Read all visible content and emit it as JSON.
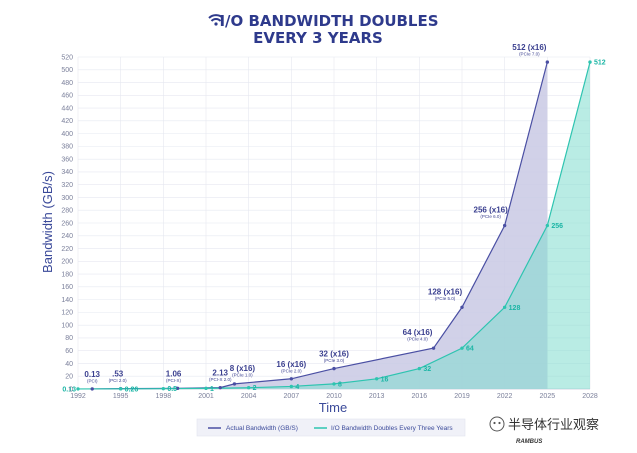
{
  "chart_data": {
    "type": "area",
    "title_line1": "I/O BANDWIDTH DOUBLES",
    "title_line2": "EVERY 3 YEARS",
    "xlabel": "Time",
    "ylabel": "Bandwidth (GB/s)",
    "ylim": [
      0,
      520
    ],
    "y_ticks": [
      0,
      20,
      40,
      60,
      80,
      100,
      120,
      140,
      160,
      180,
      200,
      220,
      240,
      260,
      280,
      300,
      320,
      340,
      360,
      380,
      400,
      420,
      440,
      460,
      480,
      500,
      520
    ],
    "xlim": [
      1992,
      2028
    ],
    "x_ticks": [
      1992,
      1995,
      1998,
      2001,
      2004,
      2007,
      2010,
      2013,
      2016,
      2019,
      2022,
      2025,
      2028
    ],
    "grid": true,
    "legend_position": "bottom-center",
    "series": [
      {
        "name": "Actual Bandwidth (GB/S)",
        "color": "#4a4fa3",
        "points": [
          {
            "x": 1993,
            "y": 0.13,
            "label": "0.13",
            "sublabel": "(PCI)"
          },
          {
            "x": 1995,
            "y": 0.53,
            "label": ".53",
            "sublabel": "(PCI 2.0)"
          },
          {
            "x": 1999,
            "y": 1.06,
            "label": "1.06",
            "sublabel": "(PCI-X)"
          },
          {
            "x": 2002,
            "y": 2.13,
            "label": "2.13",
            "sublabel": "(PCI-X 2.0)"
          },
          {
            "x": 2003,
            "y": 8,
            "label": "8 (x16)",
            "sublabel": "(PCIe 1.0)"
          },
          {
            "x": 2007,
            "y": 16,
            "label": "16 (x16)",
            "sublabel": "(PCIe 2.0)"
          },
          {
            "x": 2010,
            "y": 32,
            "label": "32 (x16)",
            "sublabel": "(PCIe 3.0)"
          },
          {
            "x": 2017,
            "y": 64,
            "label": "64 (x16)",
            "sublabel": "(PCIe 4.0)"
          },
          {
            "x": 2019,
            "y": 128,
            "label": "128 (x16)",
            "sublabel": "(PCIe 5.0)"
          },
          {
            "x": 2022,
            "y": 256,
            "label": "256 (x16)",
            "sublabel": "(PCIe 6.0)"
          },
          {
            "x": 2025,
            "y": 512,
            "label": "512 (x16)",
            "sublabel": "(PCIe 7.0)"
          }
        ]
      },
      {
        "name": "I/O Bandwidth Doubles Every Three Years",
        "color": "#2ec4b0",
        "points": [
          {
            "x": 1992,
            "y": 0.13,
            "label": "0.13"
          },
          {
            "x": 1995,
            "y": 0.26,
            "label": "0.26"
          },
          {
            "x": 1998,
            "y": 0.5,
            "label": "0.5"
          },
          {
            "x": 2001,
            "y": 1,
            "label": "1"
          },
          {
            "x": 2004,
            "y": 2,
            "label": "2"
          },
          {
            "x": 2007,
            "y": 4,
            "label": "4"
          },
          {
            "x": 2010,
            "y": 8,
            "label": "8"
          },
          {
            "x": 2013,
            "y": 16,
            "label": "16"
          },
          {
            "x": 2016,
            "y": 32,
            "label": "32"
          },
          {
            "x": 2019,
            "y": 64,
            "label": "64"
          },
          {
            "x": 2022,
            "y": 128,
            "label": "128"
          },
          {
            "x": 2025,
            "y": 256,
            "label": "256"
          },
          {
            "x": 2028,
            "y": 512,
            "label": "512"
          }
        ]
      }
    ]
  },
  "watermark": {
    "text": "半导体行业观察",
    "sub": "RAMBUS"
  }
}
